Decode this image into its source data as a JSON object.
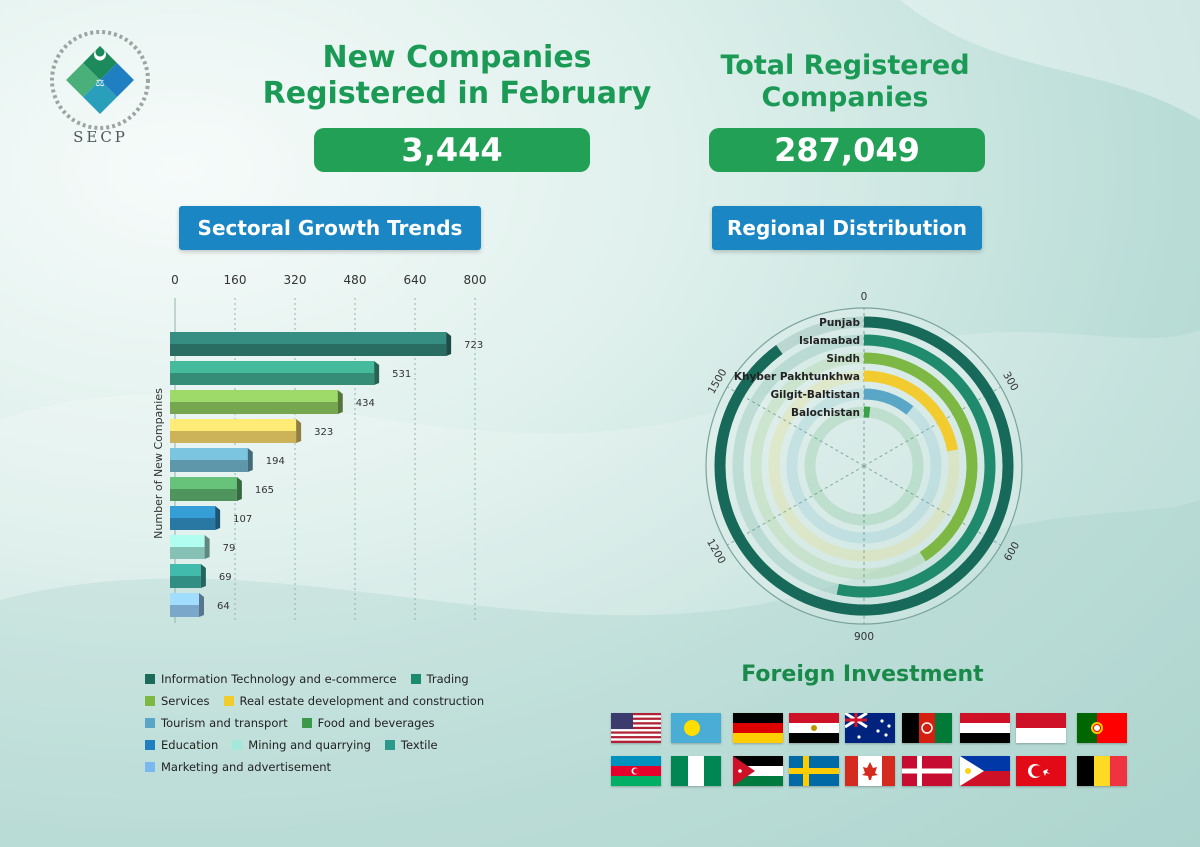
{
  "logo": {
    "text": "SECP"
  },
  "headlines": {
    "new_title": "New Companies Registered in February",
    "new_value": "3,444",
    "total_title": "Total Registered Companies",
    "total_value": "287,049"
  },
  "sections": {
    "sectoral": "Sectoral Growth Trends",
    "regional": "Regional Distribution",
    "foreign": "Foreign Investment"
  },
  "chart_data": [
    {
      "type": "bar",
      "orientation": "horizontal",
      "title": "Sectoral Growth Trends",
      "ylabel": "Number of New Companies",
      "xlim": [
        0,
        800
      ],
      "xticks": [
        0,
        160,
        320,
        480,
        640,
        800
      ],
      "grid": true,
      "legend_position": "bottom",
      "categories": [
        "Information Technology and e-commerce",
        "Trading",
        "Services",
        "Real estate development and construction",
        "Tourism and transport",
        "Food and beverages",
        "Education",
        "Mining and quarrying",
        "Textile",
        "Marketing and advertisement"
      ],
      "values": [
        723,
        531,
        434,
        323,
        194,
        165,
        107,
        79,
        69,
        64
      ],
      "colors": [
        "#2f7f73",
        "#3ea68c",
        "#8cc35f",
        "#f0d36a",
        "#6fb0c8",
        "#5cae6c",
        "#2f8dc0",
        "#9ee3d6",
        "#3aa79a",
        "#8fc5ee"
      ],
      "legend_colors": [
        "#1c6a5a",
        "#1c8a6e",
        "#7cb842",
        "#f2cc2a",
        "#5aa6c6",
        "#3a9a4a",
        "#1f7fc0",
        "#a4e8dc",
        "#2a9a8c",
        "#7ab8f0"
      ]
    },
    {
      "type": "radial-bar",
      "title": "Regional Distribution",
      "range": [
        0,
        1800
      ],
      "ticks": [
        0,
        300,
        600,
        900,
        1200,
        1500,
        1800
      ],
      "categories": [
        "Punjab",
        "Islamabad",
        "Sindh",
        "Khyber Pakhtunkhwa",
        "Gilgit-Baltistan",
        "Balochistan"
      ],
      "values": [
        1620,
        960,
        735,
        400,
        198,
        30
      ],
      "colors": [
        "#17695a",
        "#1f8a6c",
        "#7cb843",
        "#f2cc2e",
        "#5aa6c6",
        "#3aa04a"
      ]
    }
  ],
  "flags": [
    "us-flag-icon",
    "palau-flag-icon",
    "germany-flag-icon",
    "egypt-flag-icon",
    "australia-flag-icon",
    "afghanistan-flag-icon",
    "yemen-flag-icon",
    "indonesia-flag-icon",
    "portugal-flag-icon",
    "azerbaijan-flag-icon",
    "nigeria-flag-icon",
    "jordan-flag-icon",
    "sweden-flag-icon",
    "canada-flag-icon",
    "denmark-flag-icon",
    "philippines-flag-icon",
    "turkey-flag-icon",
    "belgium-flag-icon"
  ]
}
